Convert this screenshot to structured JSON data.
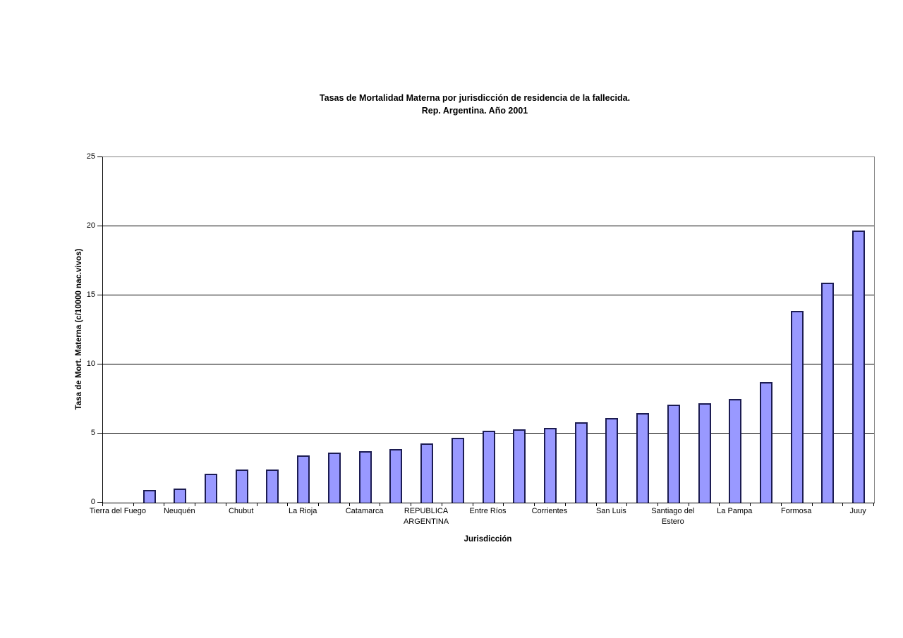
{
  "title": {
    "line1": "Tasas de Mortalidad Materna por jurisdicción de residencia de la fallecida.",
    "line2": "Rep. Argentina. Año 2001"
  },
  "chart_data": {
    "type": "bar",
    "title": "Tasas de Mortalidad Materna por jurisdicción de residencia de la fallecida. Rep. Argentina. Año 2001",
    "xlabel": "Jurisdicción",
    "ylabel": "Tasa de Mort. Materna (c/10000 nac.vivos)",
    "ylim": [
      0,
      25
    ],
    "y_ticks": [
      0,
      5,
      10,
      15,
      20,
      25
    ],
    "gridlines": true,
    "legend": false,
    "category_label_interval": 2,
    "categories": [
      "Tierra del Fuego",
      "",
      "Neuquén",
      "",
      "Chubut",
      "",
      "La Rioja",
      "",
      "Catamarca",
      "",
      "REPUBLICA ARGENTINA",
      "",
      "Entre Ríos",
      "",
      "Corrientes",
      "",
      "San Luis",
      "",
      "Santiago del Estero",
      "",
      "La Pampa",
      "",
      "Formosa",
      "",
      "Juuy"
    ],
    "values": [
      0,
      0.9,
      1.0,
      2.1,
      2.4,
      2.4,
      3.4,
      3.6,
      3.7,
      3.9,
      4.3,
      4.7,
      5.2,
      5.3,
      5.4,
      5.8,
      6.1,
      6.5,
      7.1,
      7.2,
      7.5,
      8.7,
      13.9,
      15.9,
      19.7
    ],
    "colors": {
      "bar_fill": "#9999FF",
      "bar_border": "#1c1c52",
      "gridline": "#000000",
      "plot_frame": "#848484",
      "axis": "#000000",
      "text": "#000000",
      "background": "#ffffff"
    }
  }
}
